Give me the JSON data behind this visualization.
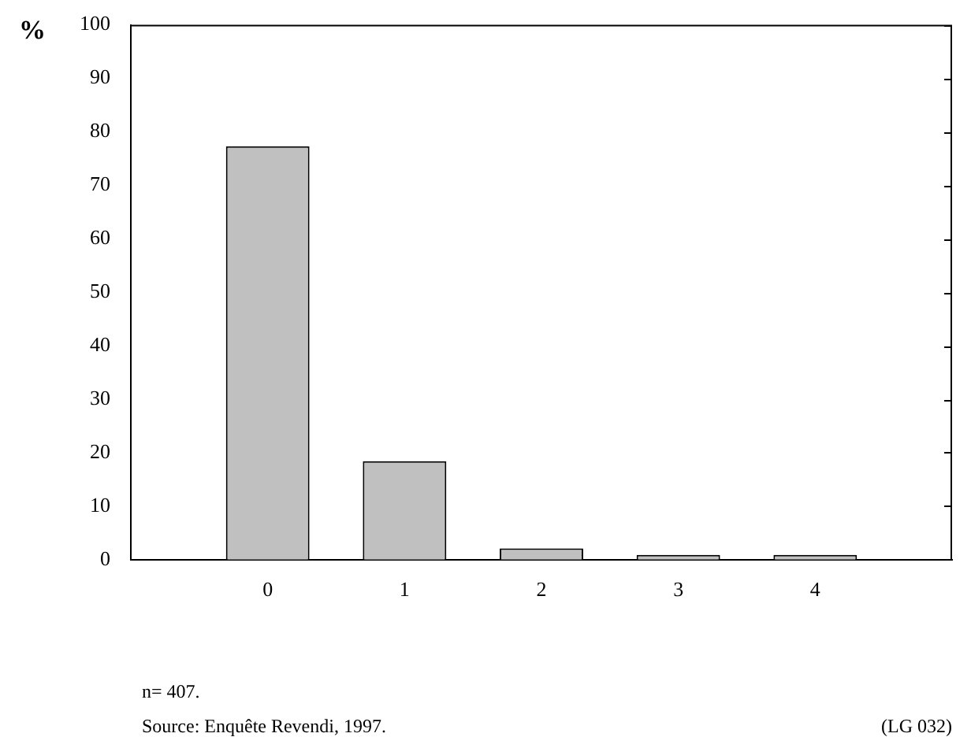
{
  "chart_data": {
    "type": "bar",
    "ylabel": "%",
    "categories": [
      null,
      "0",
      "1",
      "2",
      "3",
      "4",
      null
    ],
    "values": [
      null,
      77.3,
      18.4,
      2.1,
      0.9,
      0.9,
      null
    ],
    "color": "#c0c0c0",
    "ylim": [
      0,
      100
    ],
    "yticks": [
      0,
      10,
      20,
      30,
      40,
      50,
      60,
      70,
      80,
      90,
      100
    ],
    "grid": false,
    "legend": false,
    "annotations": [
      "n= 407.",
      "Source: Enquête Revendi, 1997.",
      "(LG 032)"
    ]
  }
}
